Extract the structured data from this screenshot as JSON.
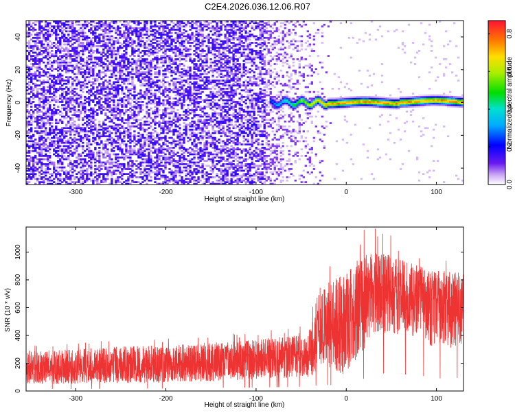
{
  "figure": {
    "title": "C2E4.2026.036.12.06.R07"
  },
  "chart_data": [
    {
      "type": "heatmap",
      "title": "",
      "xlabel": "Height of straight line (km)",
      "ylabel": "Frequency (Hz)",
      "xlim": [
        -355,
        130
      ],
      "ylim": [
        -50,
        50
      ],
      "x_ticks": [
        -300,
        -200,
        -100,
        0,
        100
      ],
      "x_tick_labels": [
        "-300",
        "-200",
        "-100",
        "0",
        "100"
      ],
      "y_ticks": [
        -40,
        -20,
        0,
        20,
        40
      ],
      "y_tick_labels": [
        "-40",
        "-20",
        "0",
        "20",
        "40"
      ],
      "colorbar": {
        "label": "Normalized spectral amplitude",
        "range": [
          0.0,
          0.87
        ],
        "ticks": [
          0.0,
          0.2,
          0.4,
          0.6,
          0.8
        ],
        "tick_labels": [
          "0.0",
          "0.2",
          "0.4",
          "0.6",
          "0.8"
        ]
      },
      "description_values": {
        "noise_region_x": [
          -355,
          -90
        ],
        "noise_amplitude": 0.12,
        "transition_x": [
          -90,
          -15
        ],
        "signal_band_x": [
          -85,
          130
        ],
        "signal_frequency_hz": 0,
        "signal_peak_amplitude": 0.8
      }
    },
    {
      "type": "line",
      "title": "",
      "xlabel": "Height of straight line (km)",
      "ylabel": "SNR (10 * v/v)",
      "xlim": [
        -355,
        130
      ],
      "ylim": [
        0,
        1180
      ],
      "x_ticks": [
        -300,
        -200,
        -100,
        0,
        100
      ],
      "x_tick_labels": [
        "-300",
        "-200",
        "-100",
        "0",
        "100"
      ],
      "y_ticks": [
        0,
        200,
        400,
        600,
        800,
        1000
      ],
      "y_tick_labels": [
        "0",
        "200",
        "400",
        "600",
        "800",
        "1000"
      ],
      "series": [
        {
          "name": "SNR",
          "color": "#ee3333",
          "envelope_x": [
            -355,
            -300,
            -250,
            -200,
            -150,
            -100,
            -60,
            -40,
            -30,
            -15,
            0,
            20,
            40,
            60,
            80,
            100,
            130
          ],
          "envelope_low": [
            50,
            50,
            55,
            60,
            70,
            85,
            95,
            100,
            150,
            140,
            100,
            300,
            420,
            400,
            380,
            300,
            320
          ],
          "envelope_mid": [
            150,
            160,
            170,
            180,
            200,
            220,
            240,
            260,
            450,
            500,
            520,
            720,
            760,
            720,
            680,
            640,
            620
          ],
          "envelope_high": [
            290,
            300,
            320,
            330,
            350,
            370,
            400,
            450,
            750,
            800,
            850,
            1000,
            1000,
            950,
            900,
            870,
            850
          ]
        }
      ]
    }
  ]
}
